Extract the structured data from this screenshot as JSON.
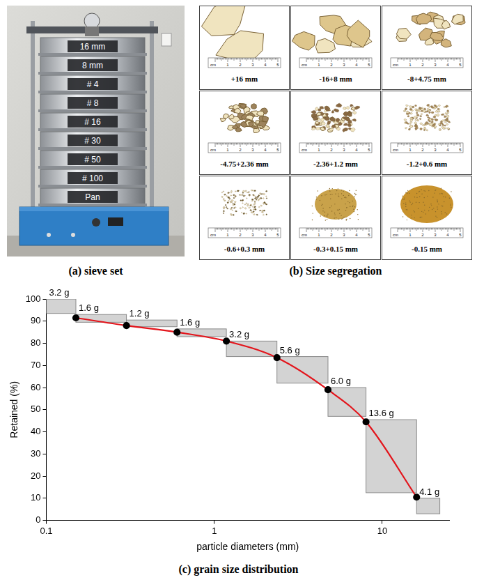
{
  "panels": {
    "a": {
      "caption": "(a) sieve set",
      "sieves": [
        "16 mm",
        "8 mm",
        "# 4",
        "# 8",
        "# 16",
        "# 30",
        "# 50",
        "# 100",
        "Pan"
      ]
    },
    "b": {
      "caption": "(b) Size segregation",
      "ruler": [
        "cm",
        "1",
        "2",
        "3",
        "4",
        "5"
      ],
      "fractions": [
        "+16 mm",
        "-16+8 mm",
        "-8+4.75 mm",
        "-4.75+2.36 mm",
        "-2.36+1.2 mm",
        "-1.2+0.6 mm",
        "-0.6+0.3 mm",
        "-0.3+0.15 mm",
        "-0.15 mm"
      ]
    },
    "c": {
      "caption": "(c) grain size distribution"
    }
  },
  "chart_data": {
    "type": "line",
    "x_label": "particle diameters (mm)",
    "y_label": "Retained (%)",
    "log": "x",
    "grid": false,
    "xlim": [
      0.1,
      25
    ],
    "xticks": [
      0.1,
      1,
      10
    ],
    "ylim": [
      0,
      100
    ],
    "yticks": [
      0,
      10,
      20,
      30,
      40,
      50,
      60,
      70,
      80,
      90,
      100
    ],
    "x": [
      0.15,
      0.3,
      0.6,
      1.18,
      2.36,
      4.75,
      8,
      16
    ],
    "series": [
      {
        "color": "#e3141b",
        "marker": "circle",
        "values": [
          91.5,
          88,
          85,
          81,
          73.5,
          59,
          44.5,
          10.5
        ]
      }
    ],
    "boxes": [
      {
        "x": [
          0.1,
          0.15
        ],
        "y": [
          93.5,
          100
        ],
        "label": "3.2 g"
      },
      {
        "x": [
          0.15,
          0.3
        ],
        "y": [
          89.5,
          93
        ],
        "label": "1.6 g"
      },
      {
        "x": [
          0.3,
          0.6
        ],
        "y": [
          87.5,
          90.5
        ],
        "label": "1.2 g"
      },
      {
        "x": [
          0.6,
          1.18
        ],
        "y": [
          83,
          86.5
        ],
        "label": "1.6 g"
      },
      {
        "x": [
          1.18,
          2.36
        ],
        "y": [
          74,
          81
        ],
        "label": "3.2 g"
      },
      {
        "x": [
          2.36,
          4.75
        ],
        "y": [
          62,
          74
        ],
        "label": "5.6 g"
      },
      {
        "x": [
          4.75,
          8
        ],
        "y": [
          47,
          60
        ],
        "label": "6.0 g"
      },
      {
        "x": [
          8,
          16
        ],
        "y": [
          12.5,
          45.5
        ],
        "label": "13.6 g"
      },
      {
        "x": [
          16,
          22
        ],
        "y": [
          3,
          10
        ],
        "label": "4.1 g"
      }
    ]
  }
}
